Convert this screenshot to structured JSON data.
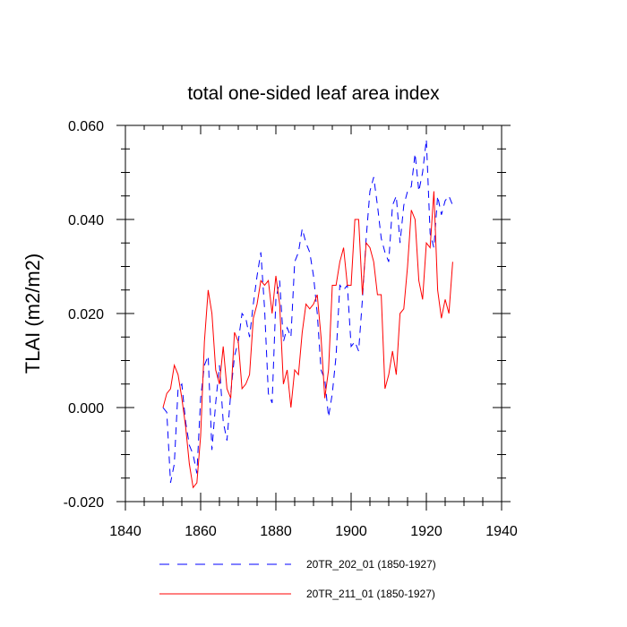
{
  "chart_data": {
    "type": "line",
    "title": "total one-sided leaf area index",
    "xlabel": "",
    "ylabel": "TLAI  (m2/m2)",
    "xlim": [
      1840,
      1940
    ],
    "ylim": [
      -0.02,
      0.06
    ],
    "xticks": [
      1840,
      1860,
      1880,
      1900,
      1920,
      1940
    ],
    "xtick_labels": [
      "1840",
      "1860",
      "1880",
      "1900",
      "1920",
      "1940"
    ],
    "yticks": [
      -0.02,
      0.0,
      0.02,
      0.04,
      0.06
    ],
    "ytick_labels": [
      "-0.020",
      "0.000",
      "0.020",
      "0.040",
      "0.060"
    ],
    "legend_position": "bottom",
    "x": [
      1850,
      1851,
      1852,
      1853,
      1854,
      1855,
      1856,
      1857,
      1858,
      1859,
      1860,
      1861,
      1862,
      1863,
      1864,
      1865,
      1866,
      1867,
      1868,
      1869,
      1870,
      1871,
      1872,
      1873,
      1874,
      1875,
      1876,
      1877,
      1878,
      1879,
      1880,
      1881,
      1882,
      1883,
      1884,
      1885,
      1886,
      1887,
      1888,
      1889,
      1890,
      1891,
      1892,
      1893,
      1894,
      1895,
      1896,
      1897,
      1898,
      1899,
      1900,
      1901,
      1902,
      1903,
      1904,
      1905,
      1906,
      1907,
      1908,
      1909,
      1910,
      1911,
      1912,
      1913,
      1914,
      1915,
      1916,
      1917,
      1918,
      1919,
      1920,
      1921,
      1922,
      1923,
      1924,
      1925,
      1926,
      1927
    ],
    "series": [
      {
        "name": "20TR_202_01 (1850-1927)",
        "color": "#0000ff",
        "dash": "dashed",
        "values": [
          0.0,
          -0.001,
          -0.016,
          -0.012,
          0.004,
          0.005,
          -0.003,
          -0.008,
          -0.01,
          -0.014,
          0.002,
          0.009,
          0.011,
          -0.009,
          0.001,
          0.009,
          -0.003,
          -0.007,
          0.003,
          0.011,
          0.014,
          0.02,
          0.019,
          0.015,
          0.022,
          0.028,
          0.033,
          0.021,
          0.003,
          0.001,
          0.023,
          0.027,
          0.014,
          0.017,
          0.015,
          0.031,
          0.033,
          0.038,
          0.035,
          0.033,
          0.028,
          0.02,
          0.008,
          0.006,
          -0.002,
          0.003,
          0.011,
          0.026,
          0.025,
          0.026,
          0.013,
          0.014,
          0.012,
          0.023,
          0.036,
          0.046,
          0.049,
          0.043,
          0.036,
          0.033,
          0.031,
          0.043,
          0.045,
          0.035,
          0.043,
          0.046,
          0.047,
          0.054,
          0.046,
          0.05,
          0.057,
          0.037,
          0.034,
          0.045,
          0.041,
          0.044,
          0.045,
          0.043
        ]
      },
      {
        "name": "20TR_211_01 (1850-1927)",
        "color": "#ff0000",
        "dash": "solid",
        "values": [
          0.0,
          0.003,
          0.004,
          0.009,
          0.007,
          0.002,
          -0.004,
          -0.012,
          -0.017,
          -0.016,
          -0.006,
          0.014,
          0.025,
          0.02,
          0.008,
          0.005,
          0.013,
          0.004,
          0.002,
          0.016,
          0.014,
          0.004,
          0.005,
          0.007,
          0.019,
          0.022,
          0.027,
          0.026,
          0.027,
          0.02,
          0.028,
          0.022,
          0.005,
          0.008,
          0.0,
          0.008,
          0.007,
          0.016,
          0.022,
          0.021,
          0.022,
          0.024,
          0.015,
          0.002,
          0.008,
          0.026,
          0.026,
          0.031,
          0.034,
          0.026,
          0.026,
          0.04,
          0.04,
          0.024,
          0.035,
          0.034,
          0.031,
          0.024,
          0.024,
          0.004,
          0.007,
          0.012,
          0.007,
          0.02,
          0.021,
          0.03,
          0.042,
          0.04,
          0.027,
          0.023,
          0.035,
          0.034,
          0.046,
          0.025,
          0.019,
          0.023,
          0.02,
          0.031
        ]
      }
    ]
  }
}
